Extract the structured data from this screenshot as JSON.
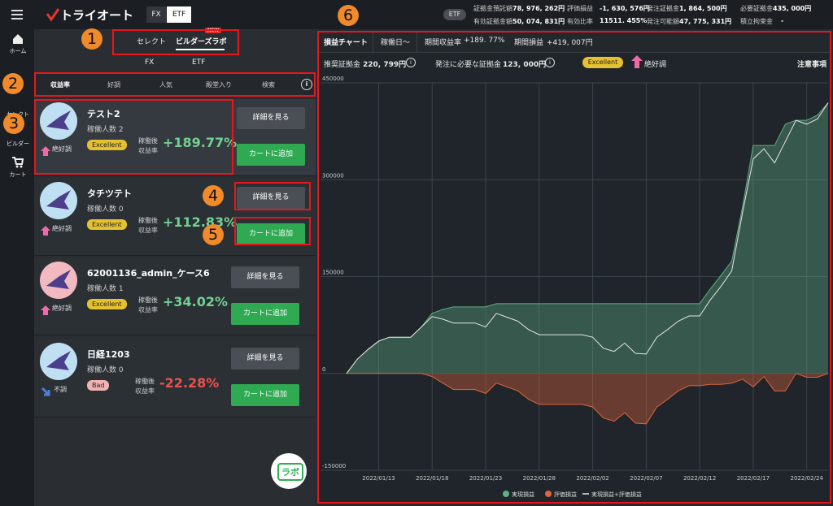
{
  "sidebar": {
    "items": [
      "ホーム",
      "セレクト",
      "ビルダー",
      "カート"
    ]
  },
  "header": {
    "logo": "トライオート",
    "toggles": [
      "FX",
      "ETF"
    ],
    "badge": "ETF",
    "info": [
      [
        {
          "label": "証拠金預託額",
          "value": "78, 976, 262円"
        },
        {
          "label": "評価損益",
          "value": "-1, 630, 576円"
        },
        {
          "label": "発注証拠金",
          "value": "1, 864, 500円"
        },
        {
          "label": "必要証拠金",
          "value": "435, 000円"
        }
      ],
      [
        {
          "label": "有効証拠金額",
          "value": "50, 074, 831円"
        },
        {
          "label": "有効比率",
          "value": "11511. 455%"
        },
        {
          "label": "発注可能額",
          "value": "47, 775, 331円"
        },
        {
          "label": "積立拘束金",
          "value": "-"
        }
      ]
    ]
  },
  "tabs": {
    "items": [
      "セレクト",
      "ビルダーズラボ"
    ],
    "new_badge": "NEW",
    "markets": [
      "FX",
      "ETF"
    ]
  },
  "filters": [
    "収益率",
    "好調",
    "人気",
    "殿堂入り",
    "検索"
  ],
  "cards": [
    {
      "name": "テスト2",
      "users": "稼働人数 2",
      "trend": "絶好調",
      "rating": "Excellent",
      "rating_color": "#e6c12f",
      "metric": [
        "稼働後",
        "収益率"
      ],
      "return": "+189.77%",
      "return_color": "#71d192",
      "detail": "詳細を見る",
      "cart": "カートに追加"
    },
    {
      "name": "タチツテト",
      "users": "稼働人数 0",
      "trend": "絶好調",
      "rating": "Excellent",
      "rating_color": "#e6c12f",
      "metric": [
        "稼働後",
        "収益率"
      ],
      "return": "+112.83%",
      "return_color": "#71d192",
      "detail": "詳細を見る",
      "cart": "カートに追加"
    },
    {
      "name": "62001136_admin_ケース6",
      "users": "稼働人数 1",
      "trend": "絶好調",
      "rating": "Excellent",
      "rating_color": "#e6c12f",
      "metric": [
        "稼働後",
        "収益率"
      ],
      "return": "+34.02%",
      "return_color": "#71d192",
      "detail": "詳細を見る",
      "cart": "カートに追加"
    },
    {
      "name": "日経1203",
      "users": "稼働人数 0",
      "trend": "不調",
      "rating": "Bad",
      "rating_color": "#f2b2b2",
      "metric": [
        "稼働後",
        "収益率"
      ],
      "return": "-22.28%",
      "return_color": "#f0504b",
      "detail": "詳細を見る",
      "cart": "カートに追加"
    }
  ],
  "lab_button": "ラボ",
  "chart_panel": {
    "tabs": [
      "損益チャート",
      "稼働日〜"
    ],
    "period_return": {
      "label": "期間収益率",
      "value": "+189. 77%"
    },
    "period_pl": {
      "label": "期間損益",
      "value": "+419, 007円"
    },
    "recommended": {
      "label": "推奨証拠金",
      "value": "220, 799円"
    },
    "required": {
      "label": "発注に必要な証拠金",
      "value": "123, 000円"
    },
    "rating": "Excellent",
    "trend": "絶好調",
    "notes": "注意事項"
  },
  "chart": {
    "type": "area",
    "categories": [
      null,
      null,
      null,
      "2022/01/13",
      null,
      null,
      null,
      null,
      "2022/01/18",
      null,
      null,
      null,
      null,
      "2022/01/23",
      null,
      null,
      null,
      null,
      "2022/01/28",
      null,
      null,
      null,
      null,
      "2022/02/02",
      null,
      null,
      null,
      null,
      "2022/02/07",
      null,
      null,
      null,
      null,
      "2022/02/12",
      null,
      null,
      null,
      null,
      "2022/02/17",
      null,
      null,
      null,
      null,
      "2022/02/24",
      null,
      null
    ],
    "series": [
      {
        "name": "実現損益",
        "color": "#5fae87",
        "values": [
          0,
          22000,
          37000,
          50000,
          56000,
          56000,
          56000,
          72000,
          93000,
          99000,
          103000,
          103000,
          103000,
          103000,
          108000,
          108000,
          108000,
          108000,
          108000,
          108000,
          108000,
          108000,
          108000,
          108000,
          108000,
          108000,
          108000,
          108000,
          108000,
          108000,
          108000,
          108000,
          108000,
          108000,
          131000,
          152000,
          174000,
          258000,
          353000,
          353000,
          353000,
          386000,
          392000,
          392000,
          400000,
          419000
        ]
      },
      {
        "name": "評価損益",
        "color": "#e0643c",
        "values": [
          0,
          0,
          0,
          0,
          0,
          0,
          0,
          0,
          -5000,
          -15000,
          -25000,
          -25000,
          -25000,
          -31000,
          -15000,
          -21000,
          -27000,
          -40000,
          -48000,
          -48000,
          -48000,
          -48000,
          -48000,
          -52000,
          -69000,
          -74000,
          -61000,
          -77000,
          -78000,
          -52000,
          -40000,
          -27000,
          -19000,
          -19000,
          -17000,
          -17000,
          -15000,
          -9000,
          -21000,
          -5000,
          -27000,
          -27000,
          0,
          -6000,
          -6000,
          0
        ]
      },
      {
        "name": "実現損益+評価損益",
        "color": "#e6e6e6",
        "values": [
          0,
          22000,
          37000,
          50000,
          56000,
          56000,
          56000,
          72000,
          88000,
          84000,
          78000,
          78000,
          78000,
          72000,
          93000,
          87000,
          81000,
          68000,
          60000,
          60000,
          60000,
          60000,
          60000,
          56000,
          39000,
          34000,
          47000,
          31000,
          30000,
          56000,
          68000,
          81000,
          89000,
          89000,
          114000,
          135000,
          159000,
          249000,
          332000,
          348000,
          326000,
          359000,
          392000,
          386000,
          394000,
          419000
        ]
      }
    ],
    "ylim": [
      -150000,
      450000
    ],
    "yticks": [
      -150000,
      0,
      150000,
      300000,
      450000
    ],
    "grid": true
  },
  "callouts": [
    "1",
    "2",
    "3",
    "4",
    "5",
    "6"
  ]
}
